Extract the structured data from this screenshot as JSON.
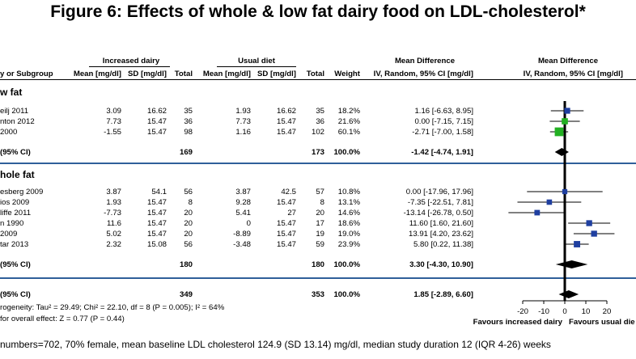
{
  "title": "Figure 6: Effects of whole & low fat dairy food on LDL-cholesterol*",
  "headers": {
    "group_increased": "Increased dairy",
    "group_usual": "Usual diet",
    "study": "y or Subgroup",
    "mean1": "Mean [mg/dl]",
    "sd1": "SD [mg/dl]",
    "total1": "Total",
    "mean2": "Mean [mg/dl]",
    "sd2": "SD [mg/dl]",
    "total2": "Total",
    "weight": "Weight",
    "md_top": "Mean Difference",
    "md_sub": "IV, Random, 95% CI [mg/dl]",
    "plot_top": "Mean Difference",
    "plot_sub": "IV, Random, 95% CI [mg/dl]"
  },
  "sections": [
    {
      "label": "w fat",
      "studies": [
        {
          "study": "eilj 2011",
          "mean1": "3.09",
          "sd1": "16.62",
          "n1": "35",
          "mean2": "1.93",
          "sd2": "16.62",
          "n2": "35",
          "weight": "18.2%",
          "ci": "1.16 [-6.63, 8.95]"
        },
        {
          "study": "nton 2012",
          "mean1": "7.73",
          "sd1": "15.47",
          "n1": "36",
          "mean2": "7.73",
          "sd2": "15.47",
          "n2": "36",
          "weight": "21.6%",
          "ci": "0.00 [-7.15, 7.15]"
        },
        {
          "study": "2000",
          "mean1": "-1.55",
          "sd1": "15.47",
          "n1": "98",
          "mean2": "1.16",
          "sd2": "15.47",
          "n2": "102",
          "weight": "60.1%",
          "ci": "-2.71 [-7.00, 1.58]"
        }
      ],
      "subtotal": {
        "label": "(95% CI)",
        "n1": "169",
        "n2": "173",
        "weight": "100.0%",
        "ci": "-1.42 [-4.74, 1.91]"
      }
    },
    {
      "label": "hole fat",
      "studies": [
        {
          "study": "esberg 2009",
          "mean1": "3.87",
          "sd1": "54.1",
          "n1": "56",
          "mean2": "3.87",
          "sd2": "42.5",
          "n2": "57",
          "weight": "10.8%",
          "ci": "0.00 [-17.96, 17.96]"
        },
        {
          "study": "ios 2009",
          "mean1": "1.93",
          "sd1": "15.47",
          "n1": "8",
          "mean2": "9.28",
          "sd2": "15.47",
          "n2": "8",
          "weight": "13.1%",
          "ci": "-7.35 [-22.51, 7.81]"
        },
        {
          "study": "liffe 2011",
          "mean1": "-7.73",
          "sd1": "15.47",
          "n1": "20",
          "mean2": "5.41",
          "sd2": "27",
          "n2": "20",
          "weight": "14.6%",
          "ci": "-13.14 [-26.78, 0.50]"
        },
        {
          "study": "n 1990",
          "mean1": "11.6",
          "sd1": "15.47",
          "n1": "20",
          "mean2": "0",
          "sd2": "15.47",
          "n2": "17",
          "weight": "18.6%",
          "ci": "11.60 [1.60, 21.60]"
        },
        {
          "study": "2009",
          "mean1": "5.02",
          "sd1": "15.47",
          "n1": "20",
          "mean2": "-8.89",
          "sd2": "15.47",
          "n2": "19",
          "weight": "19.0%",
          "ci": "13.91 [4.20, 23.62]"
        },
        {
          "study": "tar 2013",
          "mean1": "2.32",
          "sd1": "15.08",
          "n1": "56",
          "mean2": "-3.48",
          "sd2": "15.47",
          "n2": "59",
          "weight": "23.9%",
          "ci": "5.80 [0.22, 11.38]"
        }
      ],
      "subtotal": {
        "label": "(95% CI)",
        "n1": "180",
        "n2": "180",
        "weight": "100.0%",
        "ci": "3.30 [-4.30, 10.90]"
      }
    }
  ],
  "overall": {
    "label": "(95% CI)",
    "n1": "349",
    "n2": "353",
    "weight": "100.0%",
    "ci": "1.85 [-2.89, 6.60]"
  },
  "heterogeneity": "rogeneity: Tau² = 29.49; Chi² = 22.10, df = 8 (P = 0.005); I² = 64%",
  "overall_effect": "for overall effect: Z = 0.77 (P = 0.44)",
  "footer": "numbers=702, 70% female, mean baseline LDL cholesterol 124.9 (SD 13.14) mg/dl, median study duration 12 (IQR 4-26) weeks",
  "colors": {
    "study_marker": "#1f3fa0",
    "large_marker": "#22b022",
    "diamond": "#000000",
    "separator": "#2f5f9a"
  },
  "chart_data": {
    "type": "forest",
    "xlim": [
      -20,
      20
    ],
    "xticks": [
      -20,
      -10,
      0,
      10,
      20
    ],
    "favours_left": "Favours increased dairy",
    "favours_right": "Favours usual die",
    "studies": [
      {
        "est": 1.16,
        "lo": -6.63,
        "hi": 8.95,
        "weight": 18.2,
        "color": "#1f3fa0"
      },
      {
        "est": 0.0,
        "lo": -7.15,
        "hi": 7.15,
        "weight": 21.6,
        "color": "#22b022"
      },
      {
        "est": -2.71,
        "lo": -7.0,
        "hi": 1.58,
        "weight": 60.1,
        "color": "#22b022"
      },
      {
        "est": 0.0,
        "lo": -17.96,
        "hi": 17.96,
        "weight": 10.8,
        "color": "#1f3fa0"
      },
      {
        "est": -7.35,
        "lo": -22.51,
        "hi": 7.81,
        "weight": 13.1,
        "color": "#1f3fa0"
      },
      {
        "est": -13.14,
        "lo": -26.78,
        "hi": 0.5,
        "weight": 14.6,
        "color": "#1f3fa0"
      },
      {
        "est": 11.6,
        "lo": 1.6,
        "hi": 21.6,
        "weight": 18.6,
        "color": "#1f3fa0"
      },
      {
        "est": 13.91,
        "lo": 4.2,
        "hi": 23.62,
        "weight": 19.0,
        "color": "#1f3fa0"
      },
      {
        "est": 5.8,
        "lo": 0.22,
        "hi": 11.38,
        "weight": 23.9,
        "color": "#1f3fa0"
      }
    ],
    "diamonds": [
      {
        "est": -1.42,
        "lo": -4.74,
        "hi": 1.91
      },
      {
        "est": 3.3,
        "lo": -4.3,
        "hi": 10.9
      },
      {
        "est": 1.85,
        "lo": -2.89,
        "hi": 6.6
      }
    ]
  }
}
